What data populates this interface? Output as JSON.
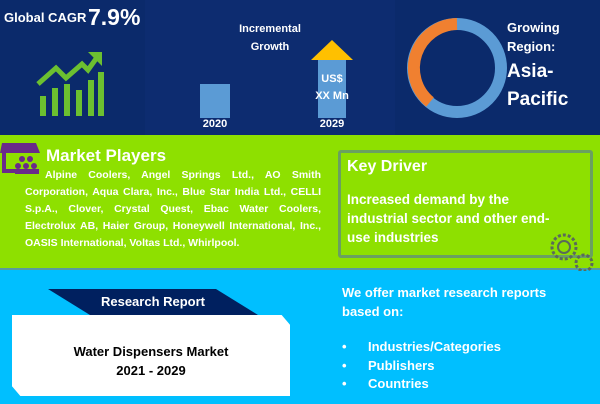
{
  "cagr": {
    "label": "Global CAGR",
    "value": "7.9%"
  },
  "growth": {
    "title_line1": "Incremental",
    "title_line2": "Growth",
    "bar_label_line1": "US$",
    "bar_label_line2": "XX Mn",
    "year_start": "2020",
    "year_end": "2029"
  },
  "region": {
    "label_line1": "Growing",
    "label_line2": "Region:",
    "value_line1": "Asia-",
    "value_line2": "Pacific"
  },
  "players": {
    "title": "Market Players",
    "text": "Alpine Coolers, Angel Springs Ltd., AO Smith Corporation, Aqua Clara, Inc., Blue Star India Ltd., CELLI S.p.A., Clover, Crystal Quest, Ebac Water Coolers, Electrolux AB, Haier Group, Honeywell International, Inc., OASIS International, Voltas Ltd., Whirlpool."
  },
  "driver": {
    "title": "Key Driver",
    "text": "Increased demand by the industrial sector and other end-use industries"
  },
  "report": {
    "tab": "Research Report",
    "title": "Water Dispensers Market",
    "years": "2021 - 2029"
  },
  "offer": {
    "line1": "We offer market research reports",
    "line2": "based on:",
    "items": [
      "Industries/Categories",
      "Publishers",
      "Countries"
    ]
  },
  "colors": {
    "navy": "#0b2a6b",
    "green": "#8ee000",
    "blue": "#00bfff",
    "orange": "#f08030",
    "arrow": "#ffc000",
    "bar": "#5b9bd5"
  }
}
